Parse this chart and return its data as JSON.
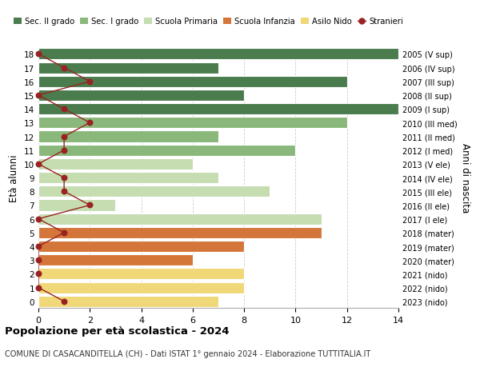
{
  "ages": [
    18,
    17,
    16,
    15,
    14,
    13,
    12,
    11,
    10,
    9,
    8,
    7,
    6,
    5,
    4,
    3,
    2,
    1,
    0
  ],
  "right_labels": [
    "2005 (V sup)",
    "2006 (IV sup)",
    "2007 (III sup)",
    "2008 (II sup)",
    "2009 (I sup)",
    "2010 (III med)",
    "2011 (II med)",
    "2012 (I med)",
    "2013 (V ele)",
    "2014 (IV ele)",
    "2015 (III ele)",
    "2016 (II ele)",
    "2017 (I ele)",
    "2018 (mater)",
    "2019 (mater)",
    "2020 (mater)",
    "2021 (nido)",
    "2022 (nido)",
    "2023 (nido)"
  ],
  "bar_values": [
    14,
    7,
    12,
    8,
    14,
    12,
    7,
    10,
    6,
    7,
    9,
    3,
    11,
    11,
    8,
    6,
    8,
    8,
    7
  ],
  "bar_colors": [
    "#4a7c4e",
    "#4a7c4e",
    "#4a7c4e",
    "#4a7c4e",
    "#4a7c4e",
    "#8ab87a",
    "#8ab87a",
    "#8ab87a",
    "#c5ddb0",
    "#c5ddb0",
    "#c5ddb0",
    "#c5ddb0",
    "#c5ddb0",
    "#d4763a",
    "#d4763a",
    "#d4763a",
    "#f0d878",
    "#f0d878",
    "#f0d878"
  ],
  "stranieri_values": [
    0,
    1,
    2,
    0,
    1,
    2,
    1,
    1,
    0,
    1,
    1,
    2,
    0,
    1,
    0,
    0,
    0,
    0,
    1
  ],
  "title_bold": "Popolazione per età scolastica - 2024",
  "subtitle": "COMUNE DI CASACANDITELLA (CH) - Dati ISTAT 1° gennaio 2024 - Elaborazione TUTTITALIA.IT",
  "ylabel": "Età alunni",
  "right_ylabel": "Anni di nascita",
  "xlim": [
    0,
    14
  ],
  "xticks": [
    0,
    2,
    4,
    6,
    8,
    10,
    12,
    14
  ],
  "legend_items": [
    {
      "label": "Sec. II grado",
      "color": "#4a7c4e"
    },
    {
      "label": "Sec. I grado",
      "color": "#8ab87a"
    },
    {
      "label": "Scuola Primaria",
      "color": "#c5ddb0"
    },
    {
      "label": "Scuola Infanzia",
      "color": "#d4763a"
    },
    {
      "label": "Asilo Nido",
      "color": "#f0d878"
    },
    {
      "label": "Stranieri",
      "color": "#992222"
    }
  ],
  "bg_color": "#ffffff",
  "grid_color": "#cccccc",
  "stranieri_line_color": "#992222",
  "bar_height": 0.82
}
